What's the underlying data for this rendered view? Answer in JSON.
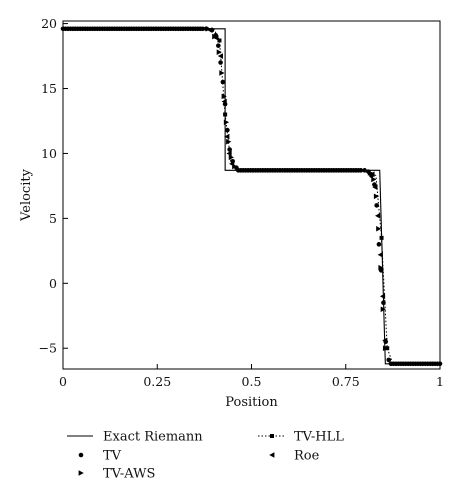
{
  "chart_data": {
    "type": "line",
    "title": "",
    "xlabel": "Position",
    "ylabel": "Velocity",
    "xlim": [
      0,
      1
    ],
    "ylim": [
      -6.6,
      20.2
    ],
    "x_ticks": [
      0,
      0.25,
      0.5,
      0.75,
      1
    ],
    "x_tick_labels": [
      "0",
      "0.25",
      "0.5",
      "0.75",
      "1"
    ],
    "y_ticks": [
      -5,
      0,
      5,
      10,
      15,
      20
    ],
    "y_tick_labels": [
      "−5",
      "0",
      "5",
      "10",
      "15",
      "20"
    ],
    "grid": false,
    "legend_position": "bottom",
    "series": [
      {
        "name": "Exact Riemann",
        "style": "solid-line",
        "x": [
          0,
          0.43,
          0.4301,
          0.44,
          0.84,
          0.8401,
          0.855,
          1.0
        ],
        "y": [
          19.6,
          19.6,
          8.7,
          8.7,
          8.7,
          8.7,
          -6.2,
          -6.2
        ]
      },
      {
        "name": "TV",
        "style": "circle-marker",
        "x": [
          0.38,
          0.395,
          0.405,
          0.412,
          0.418,
          0.424,
          0.43,
          0.436,
          0.442,
          0.45,
          0.46,
          0.8,
          0.81,
          0.818,
          0.826,
          0.832,
          0.838,
          0.844,
          0.85,
          0.856,
          0.864
        ],
        "y": [
          19.6,
          19.5,
          19.1,
          18.3,
          17.0,
          15.5,
          13.8,
          11.8,
          10.3,
          9.4,
          8.9,
          8.7,
          8.6,
          8.3,
          7.6,
          6.0,
          3.0,
          1.0,
          -1.5,
          -4.5,
          -5.9
        ]
      },
      {
        "name": "TV-HLL",
        "style": "dotted-line-square-marker",
        "x": [
          0,
          0.4,
          0.415,
          0.43,
          0.445,
          0.46,
          0.48,
          0.8,
          0.83,
          0.845,
          0.86,
          0.875,
          1.0
        ],
        "y": [
          19.6,
          19.6,
          18.7,
          13.0,
          9.4,
          8.8,
          8.7,
          8.7,
          8.3,
          3.5,
          -5.0,
          -6.2,
          -6.2
        ]
      },
      {
        "name": "TV-AWS",
        "style": "right-triangle-marker",
        "x": [
          0.385,
          0.402,
          0.414,
          0.421,
          0.427,
          0.433,
          0.439,
          0.446,
          0.455,
          0.815,
          0.824,
          0.831,
          0.837,
          0.843,
          0.849,
          0.855
        ],
        "y": [
          19.6,
          19.0,
          17.8,
          16.2,
          14.4,
          12.4,
          10.9,
          9.7,
          9.0,
          8.5,
          8.0,
          6.7,
          4.2,
          1.2,
          -2.0,
          -5.0
        ]
      },
      {
        "name": "Roe",
        "style": "left-triangle-marker",
        "x": [
          0.39,
          0.406,
          0.418,
          0.428,
          0.435,
          0.441,
          0.448,
          0.82,
          0.828,
          0.835,
          0.842,
          0.848,
          0.854
        ],
        "y": [
          19.5,
          18.9,
          17.5,
          14.0,
          11.3,
          10.0,
          9.2,
          8.4,
          7.4,
          5.2,
          2.2,
          -1.0,
          -4.4
        ]
      }
    ]
  }
}
